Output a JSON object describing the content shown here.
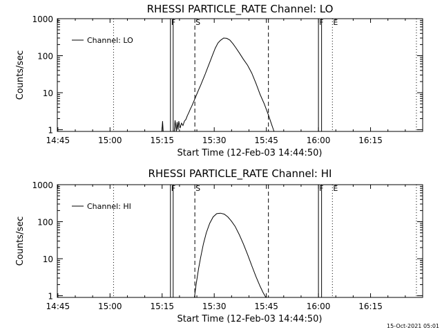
{
  "footer": {
    "timestamp": "15-Oct-2021 05:01"
  },
  "chart_data": [
    {
      "type": "line",
      "title": "RHESSI PARTICLE_RATE Channel: LO",
      "xlabel": "Start Time (12-Feb-03 14:44:50)",
      "ylabel": "Counts/sec",
      "legend": "Channel: LO",
      "legend_position": "top-left",
      "yscale": "log",
      "xlim": [
        14.7472,
        16.5
      ],
      "ylim": [
        0.9,
        1000
      ],
      "xticks": [
        14.75,
        15.0,
        15.25,
        15.5,
        15.75,
        16.0,
        16.25
      ],
      "xtick_labels": [
        "14:45",
        "15:00",
        "15:15",
        "15:30",
        "15:45",
        "16:00",
        "16:15"
      ],
      "yticks": [
        1,
        10,
        100,
        1000
      ],
      "ytick_labels": [
        "1",
        "10",
        "100",
        "1000"
      ],
      "markers": [
        {
          "x": 15.017,
          "style": "dotted",
          "label": ""
        },
        {
          "x": 15.29,
          "style": "solid",
          "label": "F"
        },
        {
          "x": 15.303,
          "style": "solid",
          "label": ""
        },
        {
          "x": 15.407,
          "style": "dashed",
          "label": "S"
        },
        {
          "x": 15.76,
          "style": "dashed",
          "label": ""
        },
        {
          "x": 16.0,
          "style": "solid",
          "label": "F"
        },
        {
          "x": 16.015,
          "style": "solid",
          "label": ""
        },
        {
          "x": 16.067,
          "style": "dotted",
          "label": "E"
        },
        {
          "x": 16.47,
          "style": "dotted",
          "label": ""
        }
      ],
      "x": [
        15.249,
        15.252,
        15.255,
        15.308,
        15.312,
        15.318,
        15.322,
        15.326,
        15.33,
        15.336,
        15.343,
        15.35,
        15.357,
        15.364,
        15.371,
        15.378,
        15.385,
        15.392,
        15.4,
        15.408,
        15.416,
        15.425,
        15.435,
        15.445,
        15.455,
        15.467,
        15.48,
        15.492,
        15.505,
        15.518,
        15.53,
        15.545,
        15.56,
        15.575,
        15.59,
        15.605,
        15.62,
        15.64,
        15.66,
        15.68,
        15.7,
        15.72,
        15.74,
        15.76,
        15.775,
        15.787
      ],
      "y": [
        0.9,
        1.7,
        0.9,
        0.9,
        1.8,
        0.9,
        1.6,
        1.0,
        1.7,
        1.1,
        1.5,
        1.3,
        1.7,
        1.9,
        2.4,
        2.9,
        3.6,
        4.3,
        5.5,
        7.0,
        9.0,
        12,
        16,
        22,
        30,
        45,
        70,
        105,
        160,
        220,
        260,
        300,
        295,
        265,
        210,
        160,
        120,
        80,
        55,
        34,
        18,
        9,
        5,
        2.5,
        1.4,
        0.9
      ]
    },
    {
      "type": "line",
      "title": "RHESSI PARTICLE_RATE Channel: HI",
      "xlabel": "Start Time (12-Feb-03 14:44:50)",
      "ylabel": "Counts/sec",
      "legend": "Channel: HI",
      "legend_position": "top-left",
      "yscale": "log",
      "xlim": [
        14.7472,
        16.5
      ],
      "ylim": [
        0.9,
        1000
      ],
      "xticks": [
        14.75,
        15.0,
        15.25,
        15.5,
        15.75,
        16.0,
        16.25
      ],
      "xtick_labels": [
        "14:45",
        "15:00",
        "15:15",
        "15:30",
        "15:45",
        "16:00",
        "16:15"
      ],
      "yticks": [
        1,
        10,
        100,
        1000
      ],
      "ytick_labels": [
        "1",
        "10",
        "100",
        "1000"
      ],
      "markers": [
        {
          "x": 15.017,
          "style": "dotted",
          "label": ""
        },
        {
          "x": 15.29,
          "style": "solid",
          "label": "F"
        },
        {
          "x": 15.303,
          "style": "solid",
          "label": ""
        },
        {
          "x": 15.407,
          "style": "dashed",
          "label": "S"
        },
        {
          "x": 15.76,
          "style": "dashed",
          "label": ""
        },
        {
          "x": 16.0,
          "style": "solid",
          "label": "F"
        },
        {
          "x": 16.015,
          "style": "solid",
          "label": ""
        },
        {
          "x": 16.067,
          "style": "dotted",
          "label": "E"
        },
        {
          "x": 16.47,
          "style": "dotted",
          "label": ""
        }
      ],
      "x": [
        15.405,
        15.408,
        15.412,
        15.418,
        15.425,
        15.435,
        15.448,
        15.462,
        15.478,
        15.495,
        15.512,
        15.53,
        15.548,
        15.565,
        15.582,
        15.6,
        15.62,
        15.64,
        15.66,
        15.68,
        15.7,
        15.72,
        15.735,
        15.748
      ],
      "y": [
        0.9,
        1.2,
        1.8,
        3.0,
        5.5,
        11,
        25,
        50,
        90,
        135,
        165,
        170,
        160,
        135,
        105,
        75,
        45,
        25,
        13,
        6.5,
        3.3,
        1.8,
        1.2,
        0.9
      ]
    }
  ]
}
